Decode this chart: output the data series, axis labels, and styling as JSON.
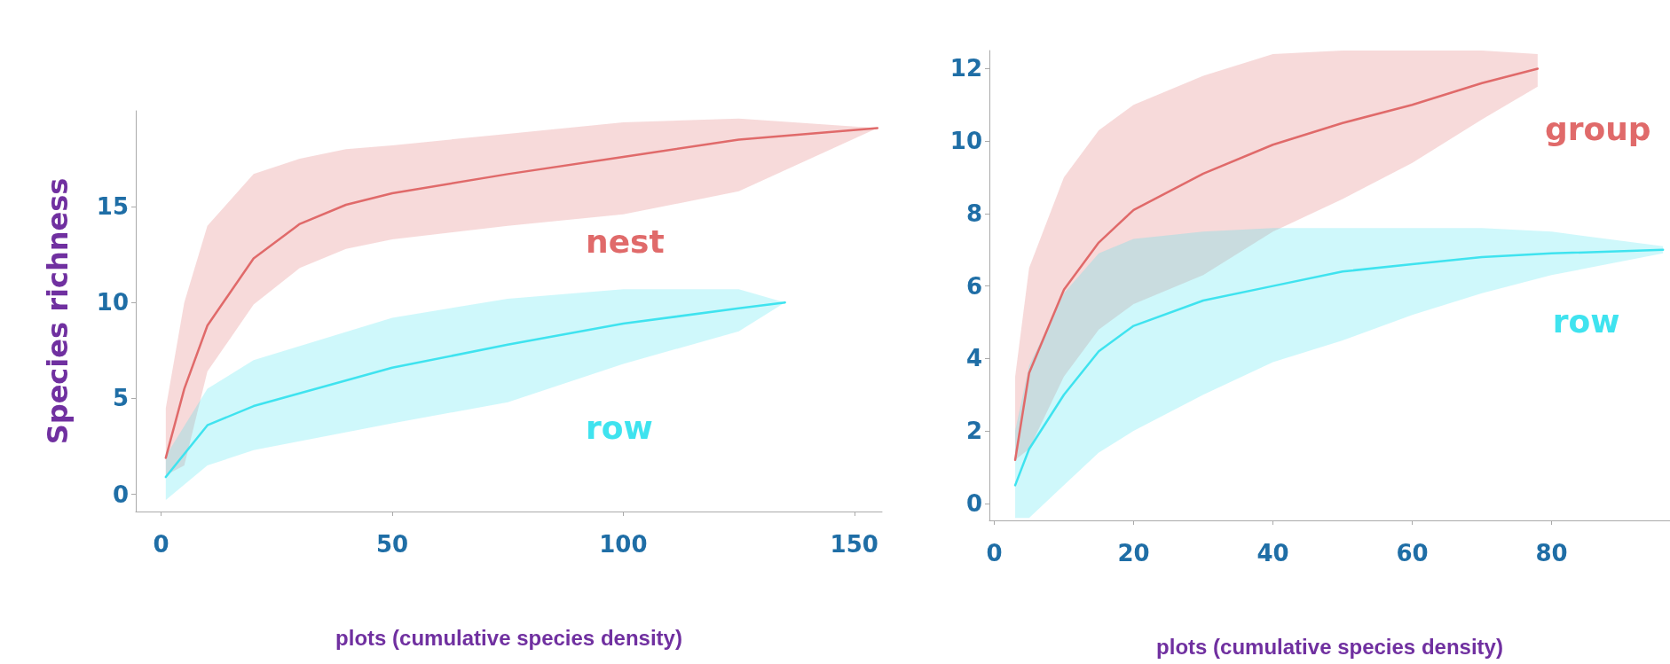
{
  "chart_data": [
    {
      "type": "line",
      "xlabel": "plots (cumulative species density)",
      "ylabel": "Species richness",
      "xlim": [
        -5.5,
        156
      ],
      "ylim": [
        -0.9,
        20
      ],
      "xticks": [
        0,
        50,
        100,
        150
      ],
      "yticks": [
        0,
        5,
        10,
        15
      ],
      "grid": false,
      "marker": "none",
      "line_style": "solid",
      "series": [
        {
          "name": "nest",
          "color": "#e06a6a",
          "x": [
            1,
            5,
            10,
            20,
            30,
            40,
            50,
            75,
            100,
            125,
            155
          ],
          "values": [
            1.9,
            5.5,
            8.8,
            12.3,
            14.1,
            15.1,
            15.7,
            16.7,
            17.6,
            18.5,
            19.1
          ],
          "lower": [
            1.0,
            1.5,
            6.4,
            9.9,
            11.8,
            12.8,
            13.3,
            14.0,
            14.6,
            15.8,
            19.1
          ],
          "upper": [
            4.5,
            10,
            14,
            16.7,
            17.5,
            18,
            18.2,
            18.8,
            19.4,
            19.6,
            19.1
          ]
        },
        {
          "name": "row",
          "color": "#3fe3ef",
          "x": [
            1,
            10,
            20,
            50,
            75,
            100,
            125,
            135
          ],
          "values": [
            0.9,
            3.6,
            4.6,
            6.6,
            7.8,
            8.9,
            9.7,
            10.0
          ],
          "lower": [
            -0.3,
            1.5,
            2.3,
            3.7,
            4.8,
            6.8,
            8.5,
            10.0
          ],
          "upper": [
            2.0,
            5.5,
            7.0,
            9.2,
            10.2,
            10.7,
            10.7,
            10.0
          ]
        }
      ]
    },
    {
      "type": "line",
      "xlabel": "plots (cumulative species density)",
      "xlim": [
        -0.7,
        97
      ],
      "ylim": [
        -0.47,
        12.5
      ],
      "xticks": [
        0,
        20,
        40,
        60,
        80
      ],
      "yticks": [
        0,
        2,
        4,
        6,
        8,
        10,
        12
      ],
      "grid": false,
      "marker": "none",
      "line_style": "solid",
      "series": [
        {
          "name": "group",
          "color": "#e06a6a",
          "x": [
            3,
            5,
            10,
            15,
            20,
            30,
            40,
            50,
            60,
            70,
            78
          ],
          "values": [
            1.2,
            3.6,
            5.9,
            7.2,
            8.1,
            9.1,
            9.9,
            10.5,
            11.0,
            11.6,
            12.0
          ],
          "lower": [
            1.2,
            1.5,
            3.5,
            4.8,
            5.5,
            6.3,
            7.5,
            8.4,
            9.4,
            10.6,
            11.5
          ],
          "upper": [
            3.5,
            6.5,
            9.0,
            10.3,
            11.0,
            11.8,
            12.4,
            12.5,
            12.5,
            12.5,
            12.4
          ]
        },
        {
          "name": "row",
          "color": "#3fe3ef",
          "x": [
            3,
            5,
            10,
            15,
            20,
            30,
            40,
            50,
            60,
            70,
            80,
            96
          ],
          "values": [
            0.5,
            1.5,
            3.0,
            4.2,
            4.9,
            5.6,
            6.0,
            6.4,
            6.6,
            6.8,
            6.9,
            7.0
          ],
          "lower": [
            -0.4,
            -0.4,
            0.5,
            1.4,
            2.0,
            3.0,
            3.9,
            4.5,
            5.2,
            5.8,
            6.3,
            6.9
          ],
          "upper": [
            2.0,
            3.8,
            5.8,
            6.9,
            7.3,
            7.5,
            7.6,
            7.6,
            7.6,
            7.6,
            7.5,
            7.1
          ]
        }
      ]
    }
  ]
}
